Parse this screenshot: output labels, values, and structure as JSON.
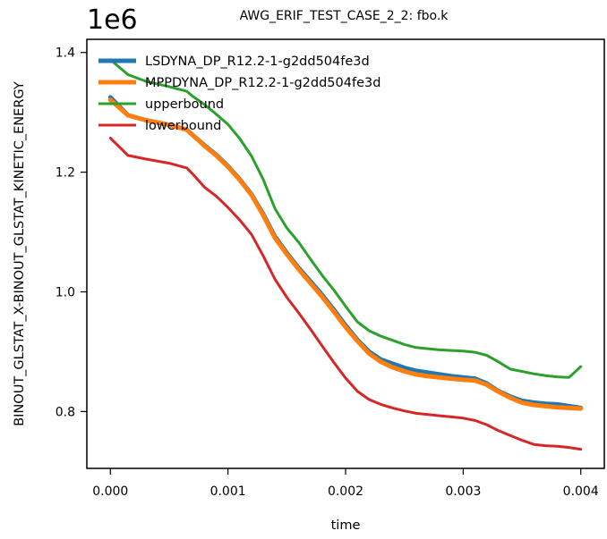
{
  "chart_data": {
    "type": "line",
    "title": "AWG_ERIF_TEST_CASE_2_2: fbo.k",
    "xlabel": "time",
    "ylabel": "BINOUT_GLSTAT_X-BINOUT_GLSTAT_KINETIC_ENERGY",
    "y_offset_label": "1e6",
    "xlim": [
      -0.0002,
      0.0042
    ],
    "ylim": [
      0.705,
      1.422
    ],
    "x_ticks": [
      0.0,
      0.001,
      0.002,
      0.003,
      0.004
    ],
    "x_tick_labels": [
      "0.000",
      "0.001",
      "0.002",
      "0.003",
      "0.004"
    ],
    "y_ticks": [
      0.8,
      1.0,
      1.2,
      1.4
    ],
    "y_tick_labels": [
      "0.8",
      "1.0",
      "1.2",
      "1.4"
    ],
    "grid": false,
    "legend_position": "top-left",
    "x": [
      0.0,
      0.00015,
      0.0003,
      0.0005,
      0.00065,
      0.0007,
      0.0008,
      0.0009,
      0.001,
      0.0011,
      0.0012,
      0.0013,
      0.0014,
      0.0015,
      0.0016,
      0.0017,
      0.0018,
      0.0019,
      0.002,
      0.0021,
      0.0022,
      0.0023,
      0.0024,
      0.0025,
      0.0026,
      0.0027,
      0.0028,
      0.0029,
      0.003,
      0.0031,
      0.0032,
      0.0033,
      0.0034,
      0.0035,
      0.0036,
      0.0037,
      0.0038,
      0.0039,
      0.004
    ],
    "series": [
      {
        "name": "LSDYNA_DP_R12.2-1-g2dd504fe3d",
        "color": "#1f77b4",
        "width": 5,
        "values": [
          1.325,
          1.295,
          1.287,
          1.279,
          1.271,
          1.262,
          1.245,
          1.229,
          1.21,
          1.188,
          1.163,
          1.13,
          1.092,
          1.065,
          1.04,
          1.018,
          0.995,
          0.97,
          0.944,
          0.92,
          0.9,
          0.887,
          0.88,
          0.873,
          0.868,
          0.865,
          0.862,
          0.859,
          0.857,
          0.855,
          0.847,
          0.834,
          0.825,
          0.818,
          0.815,
          0.813,
          0.812,
          0.809,
          0.806
        ]
      },
      {
        "name": "MPPDYNA_DP_R12.2-1-g2dd504fe3d",
        "color": "#ff7f0e",
        "width": 5,
        "values": [
          1.321,
          1.295,
          1.287,
          1.279,
          1.271,
          1.262,
          1.244,
          1.228,
          1.209,
          1.187,
          1.162,
          1.128,
          1.09,
          1.063,
          1.038,
          1.015,
          0.992,
          0.967,
          0.941,
          0.918,
          0.897,
          0.883,
          0.874,
          0.867,
          0.862,
          0.859,
          0.857,
          0.855,
          0.853,
          0.852,
          0.845,
          0.833,
          0.823,
          0.815,
          0.811,
          0.809,
          0.807,
          0.806,
          0.805
        ]
      },
      {
        "name": "upperbound",
        "color": "#2ca02c",
        "width": 3,
        "values": [
          1.388,
          1.363,
          1.352,
          1.343,
          1.335,
          1.327,
          1.313,
          1.297,
          1.28,
          1.256,
          1.227,
          1.188,
          1.139,
          1.107,
          1.083,
          1.055,
          1.028,
          1.003,
          0.976,
          0.95,
          0.935,
          0.926,
          0.919,
          0.912,
          0.907,
          0.905,
          0.903,
          0.902,
          0.901,
          0.899,
          0.894,
          0.883,
          0.871,
          0.867,
          0.863,
          0.86,
          0.858,
          0.857,
          0.875
        ]
      },
      {
        "name": "lowerbound",
        "color": "#d62728",
        "width": 3,
        "values": [
          1.257,
          1.228,
          1.222,
          1.215,
          1.207,
          1.197,
          1.175,
          1.16,
          1.141,
          1.12,
          1.096,
          1.06,
          1.021,
          0.991,
          0.965,
          0.938,
          0.91,
          0.882,
          0.856,
          0.834,
          0.82,
          0.812,
          0.806,
          0.801,
          0.797,
          0.795,
          0.793,
          0.791,
          0.789,
          0.785,
          0.778,
          0.768,
          0.76,
          0.752,
          0.745,
          0.743,
          0.742,
          0.74,
          0.737
        ]
      }
    ]
  }
}
